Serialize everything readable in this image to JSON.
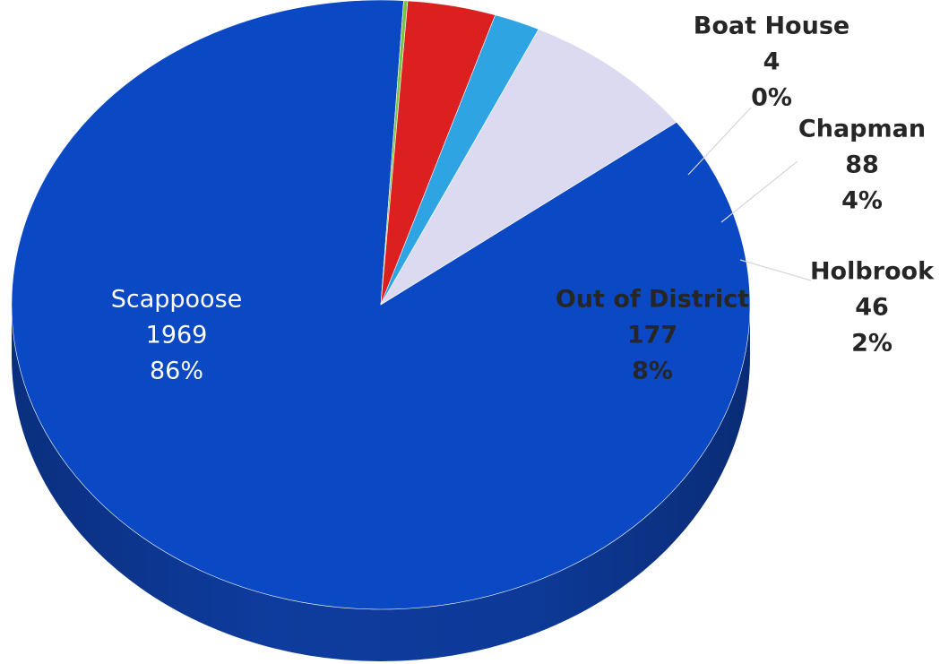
{
  "chart_data": {
    "type": "pie",
    "title": "",
    "slices": [
      {
        "name": "Scappoose",
        "value": 1969,
        "percent": "86%",
        "color": "#0b48c4"
      },
      {
        "name": "Boat House",
        "value": 4,
        "percent": "0%",
        "color": "#7cc244"
      },
      {
        "name": "Chapman",
        "value": 88,
        "percent": "4%",
        "color": "#dc2020"
      },
      {
        "name": "Holbrook",
        "value": 46,
        "percent": "2%",
        "color": "#2ea4e2"
      },
      {
        "name": "Out of District",
        "value": 177,
        "percent": "8%",
        "color": "#dcdaf0"
      }
    ],
    "value_labels": [
      "1969",
      "4",
      "88",
      "46",
      "177"
    ],
    "style": "3d",
    "legend": "none"
  }
}
